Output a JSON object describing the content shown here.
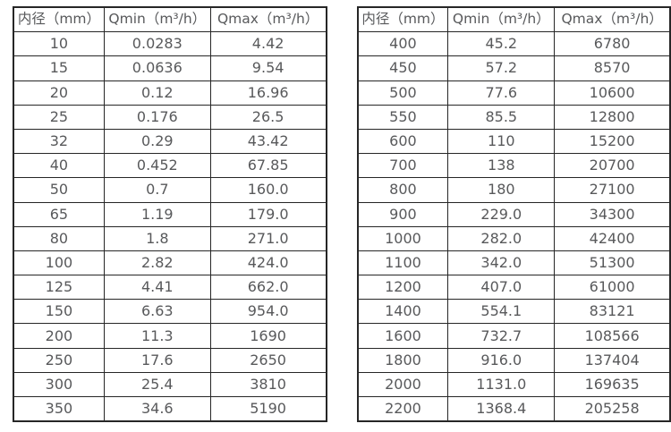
{
  "colors": {
    "background": "#ffffff",
    "border": "#262626",
    "text": "#58595b"
  },
  "tables": {
    "left": {
      "title": "flow-spec-small-diameters",
      "headers": [
        "内径（mm）",
        "Qmin（m³/h）",
        "Qmax（m³/h）"
      ],
      "rows": [
        [
          "10",
          "0.0283",
          "4.42"
        ],
        [
          "15",
          "0.0636",
          "9.54"
        ],
        [
          "20",
          "0.12",
          "16.96"
        ],
        [
          "25",
          "0.176",
          "26.5"
        ],
        [
          "32",
          "0.29",
          "43.42"
        ],
        [
          "40",
          "0.452",
          "67.85"
        ],
        [
          "50",
          "0.7",
          "160.0"
        ],
        [
          "65",
          "1.19",
          "179.0"
        ],
        [
          "80",
          "1.8",
          "271.0"
        ],
        [
          "100",
          "2.82",
          "424.0"
        ],
        [
          "125",
          "4.41",
          "662.0"
        ],
        [
          "150",
          "6.63",
          "954.0"
        ],
        [
          "200",
          "11.3",
          "1690"
        ],
        [
          "250",
          "17.6",
          "2650"
        ],
        [
          "300",
          "25.4",
          "3810"
        ],
        [
          "350",
          "34.6",
          "5190"
        ]
      ]
    },
    "right": {
      "title": "flow-spec-large-diameters",
      "headers": [
        "内径（mm）",
        "Qmin（m³/h）",
        "Qmax（m³/h）"
      ],
      "rows": [
        [
          "400",
          "45.2",
          "6780"
        ],
        [
          "450",
          "57.2",
          "8570"
        ],
        [
          "500",
          "77.6",
          "10600"
        ],
        [
          "550",
          "85.5",
          "12800"
        ],
        [
          "600",
          "110",
          "15200"
        ],
        [
          "700",
          "138",
          "20700"
        ],
        [
          "800",
          "180",
          "27100"
        ],
        [
          "900",
          "229.0",
          "34300"
        ],
        [
          "1000",
          "282.0",
          "42400"
        ],
        [
          "1100",
          "342.0",
          "51300"
        ],
        [
          "1200",
          "407.0",
          "61000"
        ],
        [
          "1400",
          "554.1",
          "83121"
        ],
        [
          "1600",
          "732.7",
          "108566"
        ],
        [
          "1800",
          "916.0",
          "137404"
        ],
        [
          "2000",
          "1131.0",
          "169635"
        ],
        [
          "2200",
          "1368.4",
          "205258"
        ]
      ]
    }
  }
}
